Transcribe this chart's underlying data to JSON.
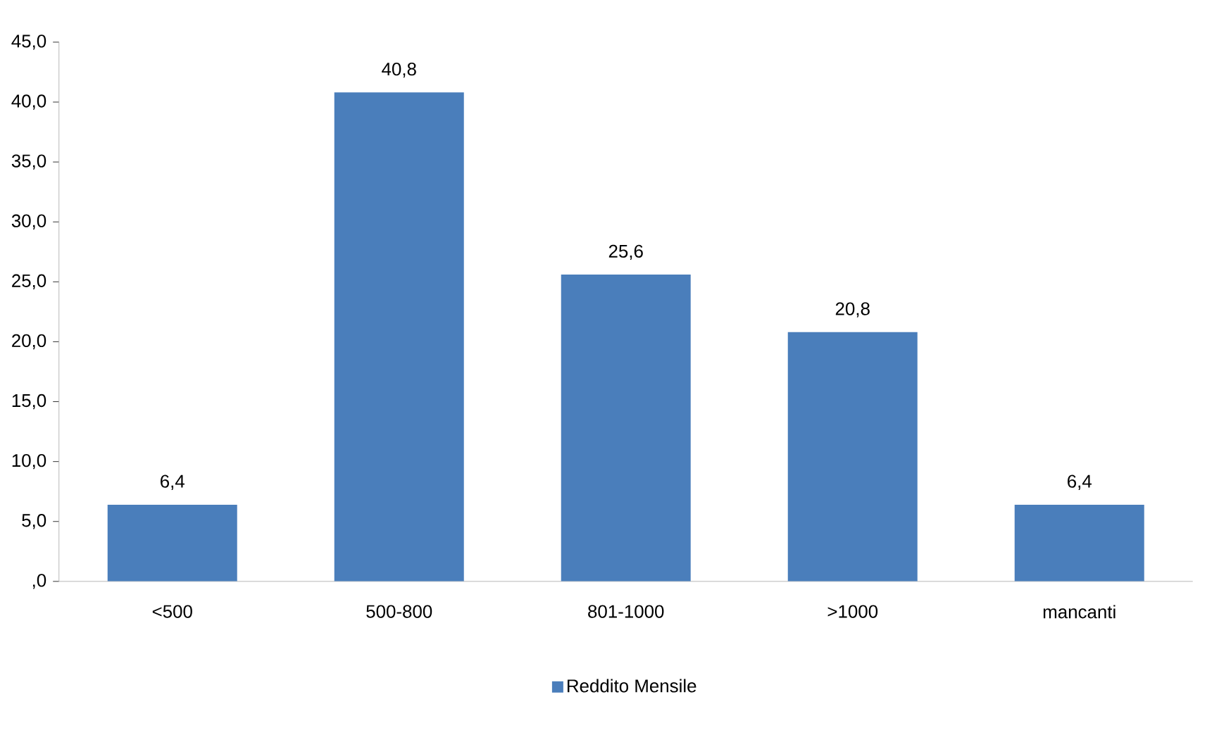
{
  "chart_data": {
    "type": "bar",
    "categories": [
      "<500",
      "500-800",
      "801-1000",
      ">1000",
      "mancanti"
    ],
    "series": [
      {
        "name": "Reddito Mensile",
        "color": "#4a7ebb",
        "values": [
          6.4,
          40.8,
          25.6,
          20.8,
          6.4
        ],
        "value_labels": [
          "6,4",
          "40,8",
          "25,6",
          "20,8",
          "6,4"
        ]
      }
    ],
    "ylim": [
      0,
      45
    ],
    "yticks": [
      {
        "value": 0,
        "label": ",0"
      },
      {
        "value": 5,
        "label": "5,0"
      },
      {
        "value": 10,
        "label": "10,0"
      },
      {
        "value": 15,
        "label": "15,0"
      },
      {
        "value": 20,
        "label": "20,0"
      },
      {
        "value": 25,
        "label": "25,0"
      },
      {
        "value": 30,
        "label": "30,0"
      },
      {
        "value": 35,
        "label": "35,0"
      },
      {
        "value": 40,
        "label": "40,0"
      },
      {
        "value": 45,
        "label": "45,0"
      }
    ],
    "grid": false,
    "legend": "bottom"
  }
}
